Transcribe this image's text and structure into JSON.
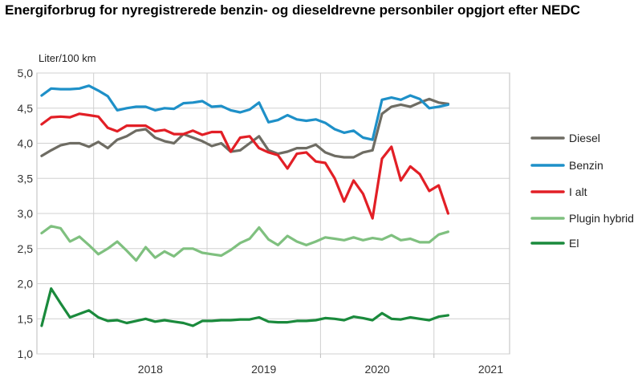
{
  "title": "Energiforbrug for nyregistrerede benzin- og dieseldrevne personbiler opgjort efter NEDC",
  "chart_data": {
    "type": "line",
    "title": "Energiforbrug for nyregistrerede benzin- og dieseldrevne personbiler opgjort efter NEDC",
    "ylabel": "Liter/100 km",
    "xlabel": "",
    "ylim": [
      1.0,
      5.0
    ],
    "yticks": [
      "5,0",
      "4,5",
      "4,0",
      "3,5",
      "3,0",
      "2,5",
      "2,0",
      "1,5",
      "1,0"
    ],
    "ytick_values": [
      5.0,
      4.5,
      4.0,
      3.5,
      3.0,
      2.5,
      2.0,
      1.5,
      1.0
    ],
    "years": [
      "2018",
      "2019",
      "2020",
      "2021"
    ],
    "x": [
      "2017-07",
      "2017-08",
      "2017-09",
      "2017-10",
      "2017-11",
      "2017-12",
      "2018-01",
      "2018-02",
      "2018-03",
      "2018-04",
      "2018-05",
      "2018-06",
      "2018-07",
      "2018-08",
      "2018-09",
      "2018-10",
      "2018-11",
      "2018-12",
      "2019-01",
      "2019-02",
      "2019-03",
      "2019-04",
      "2019-05",
      "2019-06",
      "2019-07",
      "2019-08",
      "2019-09",
      "2019-10",
      "2019-11",
      "2019-12",
      "2020-01",
      "2020-02",
      "2020-03",
      "2020-04",
      "2020-05",
      "2020-06",
      "2020-07",
      "2020-08",
      "2020-09",
      "2020-10",
      "2020-11",
      "2020-12",
      "2021-01",
      "2021-02",
      "2021-03",
      "2021-04",
      "2021-05",
      "2021-06",
      "2021-07",
      "2021-08"
    ],
    "grid": true,
    "legend": "right",
    "series": [
      {
        "name": "Diesel",
        "color": "#6e6c63",
        "values": [
          3.82,
          3.9,
          3.97,
          4.0,
          4.0,
          3.95,
          4.02,
          3.93,
          4.05,
          4.1,
          4.18,
          4.2,
          4.08,
          4.03,
          4.0,
          4.13,
          4.08,
          4.03,
          3.96,
          4.0,
          3.88,
          3.9,
          4.0,
          4.1,
          3.9,
          3.85,
          3.88,
          3.93,
          3.93,
          3.98,
          3.87,
          3.82,
          3.8,
          3.8,
          3.87,
          3.9,
          4.42,
          4.52,
          4.55,
          4.52,
          4.58,
          4.63,
          4.58,
          4.56,
          null,
          null,
          null,
          null,
          null,
          null
        ]
      },
      {
        "name": "Benzin",
        "color": "#1e90c8",
        "values": [
          4.68,
          4.78,
          4.77,
          4.77,
          4.78,
          4.82,
          4.75,
          4.67,
          4.47,
          4.5,
          4.52,
          4.52,
          4.47,
          4.5,
          4.49,
          4.57,
          4.58,
          4.6,
          4.52,
          4.53,
          4.47,
          4.44,
          4.48,
          4.58,
          4.3,
          4.33,
          4.4,
          4.34,
          4.32,
          4.34,
          4.29,
          4.2,
          4.15,
          4.18,
          4.08,
          4.05,
          4.62,
          4.65,
          4.62,
          4.68,
          4.63,
          4.5,
          4.52,
          4.55,
          null,
          null,
          null,
          null,
          null,
          null
        ]
      },
      {
        "name": "I alt",
        "color": "#e21f26",
        "values": [
          4.27,
          4.37,
          4.38,
          4.37,
          4.42,
          4.4,
          4.38,
          4.22,
          4.17,
          4.25,
          4.25,
          4.25,
          4.17,
          4.19,
          4.13,
          4.13,
          4.18,
          4.12,
          4.16,
          4.16,
          3.88,
          4.08,
          4.1,
          3.93,
          3.87,
          3.83,
          3.64,
          3.85,
          3.87,
          3.74,
          3.72,
          3.5,
          3.17,
          3.47,
          3.28,
          2.93,
          3.78,
          3.95,
          3.47,
          3.67,
          3.56,
          3.32,
          3.4,
          3.0,
          null,
          null,
          null,
          null,
          null,
          null
        ]
      },
      {
        "name": "Plugin hybrid",
        "color": "#7fc07f",
        "values": [
          2.72,
          2.82,
          2.79,
          2.6,
          2.67,
          2.55,
          2.42,
          2.5,
          2.6,
          2.47,
          2.33,
          2.52,
          2.37,
          2.46,
          2.39,
          2.5,
          2.5,
          2.44,
          2.42,
          2.4,
          2.48,
          2.58,
          2.64,
          2.8,
          2.63,
          2.55,
          2.68,
          2.6,
          2.55,
          2.6,
          2.66,
          2.64,
          2.62,
          2.66,
          2.62,
          2.65,
          2.63,
          2.69,
          2.62,
          2.64,
          2.59,
          2.59,
          2.7,
          2.74,
          null,
          null,
          null,
          null,
          null,
          null
        ]
      },
      {
        "name": "El",
        "color": "#1a8a3c",
        "values": [
          1.4,
          1.93,
          1.72,
          1.52,
          1.57,
          1.62,
          1.52,
          1.47,
          1.48,
          1.44,
          1.47,
          1.5,
          1.46,
          1.48,
          1.46,
          1.44,
          1.4,
          1.47,
          1.47,
          1.48,
          1.48,
          1.49,
          1.49,
          1.52,
          1.46,
          1.45,
          1.45,
          1.47,
          1.47,
          1.48,
          1.51,
          1.5,
          1.48,
          1.53,
          1.51,
          1.48,
          1.58,
          1.5,
          1.49,
          1.52,
          1.5,
          1.48,
          1.53,
          1.55,
          null,
          null,
          null,
          null,
          null,
          null
        ]
      }
    ]
  }
}
